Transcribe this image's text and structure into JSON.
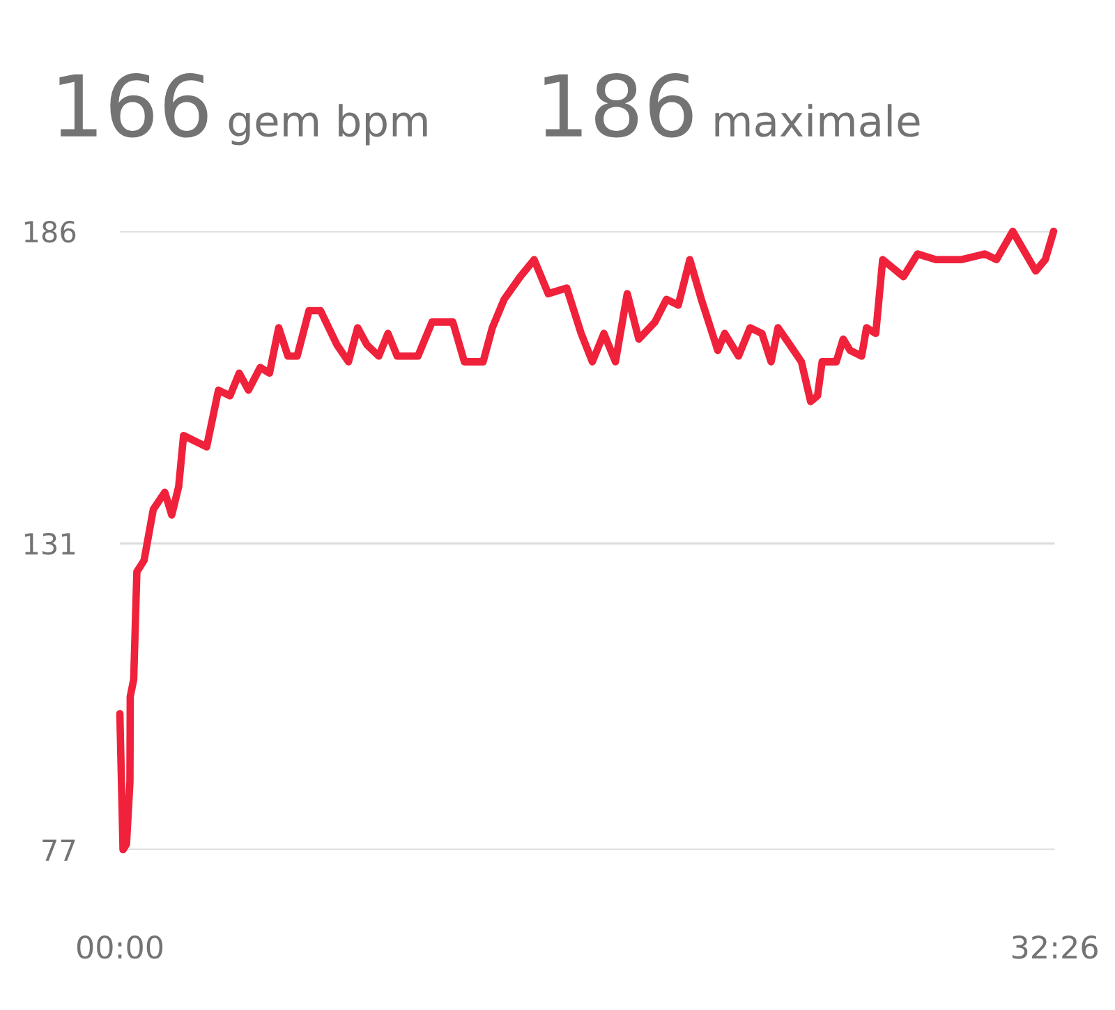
{
  "chart_data": {
    "type": "line",
    "annotations": [
      "166 gem bpm",
      "186 maximale"
    ],
    "x": [
      0,
      0.11,
      0.23,
      0.35,
      0.36,
      0.48,
      0.59,
      0.84,
      1.16,
      1.56,
      1.8,
      2.04,
      2.21,
      3.01,
      3.42,
      3.82,
      4.14,
      4.46,
      4.87,
      5.19,
      5.51,
      5.83,
      6.15,
      6.56,
      6.96,
      7.53,
      7.93,
      8.25,
      8.57,
      8.98,
      9.3,
      9.62,
      10.34,
      10.83,
      11.55,
      11.95,
      12.6,
      12.92,
      13.33,
      13.89,
      14.37,
      14.86,
      15.5,
      16.0,
      16.39,
      16.79,
      17.19,
      17.6,
      18.0,
      18.56,
      18.96,
      19.37,
      19.77,
      20.17,
      20.74,
      20.98,
      21.46,
      21.86,
      22.27,
      22.59,
      22.83,
      23.24,
      23.64,
      23.96,
      24.2,
      24.36,
      24.85,
      25.09,
      25.33,
      25.73,
      25.9,
      26.22,
      26.46,
      27.18,
      27.67,
      28.31,
      29.2,
      30.0,
      30.41,
      30.97,
      31.77,
      32.1,
      32.39
    ],
    "series": [
      {
        "color": "#f0213a",
        "values": [
          101,
          77,
          78,
          89,
          104,
          107,
          126,
          128,
          137,
          140,
          136,
          141,
          150,
          148,
          158,
          157,
          161,
          158,
          162,
          161,
          169,
          164,
          164,
          172,
          172,
          166,
          163,
          169,
          166,
          164,
          168,
          164,
          164,
          170,
          170,
          163,
          163,
          169,
          174,
          178,
          181,
          175,
          176,
          168,
          163,
          168,
          163,
          175,
          167,
          170,
          174,
          173,
          181,
          174,
          165,
          168,
          164,
          169,
          168,
          163,
          169,
          166,
          163,
          156,
          157,
          163,
          163,
          167,
          165,
          164,
          169,
          168,
          181,
          178,
          182,
          181,
          181,
          182,
          181,
          186,
          179,
          181,
          186
        ]
      }
    ],
    "xlim": [
      0,
      32.43
    ],
    "xticks": [
      {
        "value": 0,
        "label": "00:00"
      },
      {
        "value": 32.43,
        "label": "32:26"
      }
    ],
    "ylim": [
      77,
      186
    ],
    "yticks": [
      77,
      131,
      186
    ],
    "grid": "y",
    "marker": "none",
    "line_style": "solid"
  }
}
